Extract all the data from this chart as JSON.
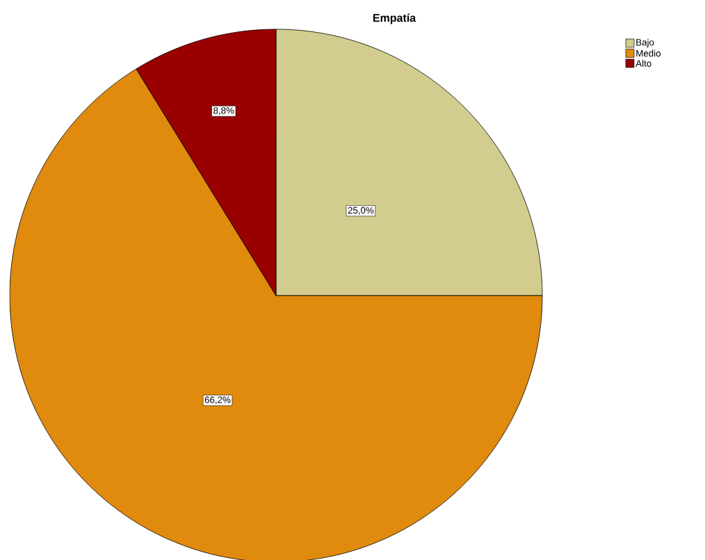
{
  "chart_data": {
    "type": "pie",
    "title": "Empatía",
    "categories": [
      "Bajo",
      "Medio",
      "Alto"
    ],
    "values": [
      25.0,
      66.2,
      8.8
    ],
    "value_labels": [
      "25,0%",
      "66,2%",
      "8,8%"
    ],
    "colors": [
      "#d2cc8e",
      "#e08a0e",
      "#990000"
    ],
    "legend": "top right"
  }
}
